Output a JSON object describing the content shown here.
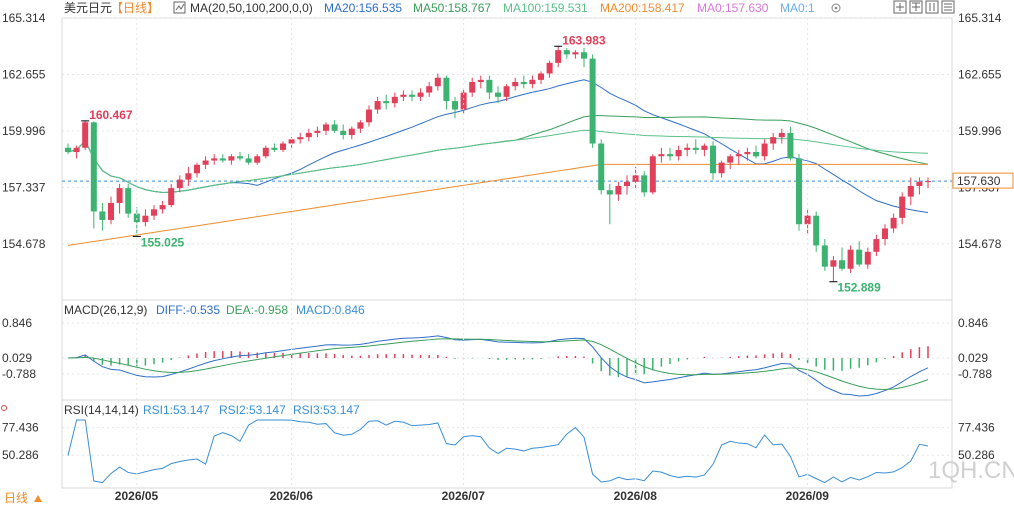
{
  "header": {
    "instrument": "美元日元",
    "period_tag": "【日线】",
    "ma_param": "MA(20,50,100,200,0,0)",
    "ma20": "MA20:156.535",
    "ma50": "MA50:158.767",
    "ma100": "MA100:159.531",
    "ma200": "MA200:158.417",
    "ma0a": "MA0:157.630",
    "ma0b": "MA0:1"
  },
  "macd_header": {
    "param": "MACD(26,12,9)",
    "diff": "DIFF:-0.535",
    "dea": "DEA:-0.958",
    "macd": "MACD:0.846"
  },
  "rsi_header": {
    "param": "RSI(14,14,14)",
    "rsi1": "RSI1:53.147",
    "rsi2": "RSI2:53.147",
    "rsi3": "RSI3:53.147"
  },
  "footer": {
    "period_label": "日线",
    "watermark": "1QH.CN"
  },
  "colors": {
    "up": "#e0405a",
    "down": "#3cb371",
    "ma20": "#2f6fc8",
    "ma50": "#3a9e5a",
    "ma100": "#5bc08a",
    "ma200": "#f08c2e",
    "diff": "#2f6fc8",
    "dea": "#3a9e5a",
    "rsi": "#3a8fd6",
    "current": "#f08c2e",
    "grid": "#e6e6e6"
  },
  "chart_data": {
    "type": "candlestick",
    "price_axis_ticks": [
      "165.314",
      "162.655",
      "159.996",
      "157.337",
      "154.678"
    ],
    "price_range": [
      152.5,
      165.314
    ],
    "current_price": "157.630",
    "annotations": {
      "high_1": "160.467",
      "low_1": "155.025",
      "high_2": "163.983",
      "low_2": "152.889"
    },
    "x_labels": [
      "2026/05",
      "2026/06",
      "2026/07",
      "2026/08",
      "2026/09"
    ],
    "candles": [
      [
        159.2,
        159.4,
        158.9,
        159.0
      ],
      [
        159.0,
        159.3,
        158.7,
        159.2
      ],
      [
        159.2,
        160.467,
        159.1,
        160.4
      ],
      [
        160.4,
        160.45,
        155.4,
        156.2
      ],
      [
        156.2,
        156.6,
        155.3,
        155.8
      ],
      [
        155.8,
        156.9,
        155.6,
        156.6
      ],
      [
        156.6,
        157.5,
        156.1,
        157.3
      ],
      [
        157.3,
        157.5,
        155.9,
        156.1
      ],
      [
        156.1,
        156.4,
        155.025,
        155.7
      ],
      [
        155.7,
        156.3,
        155.5,
        156.0
      ],
      [
        156.0,
        156.5,
        155.8,
        156.3
      ],
      [
        156.3,
        156.7,
        156.1,
        156.5
      ],
      [
        156.5,
        157.5,
        156.4,
        157.3
      ],
      [
        157.3,
        157.9,
        157.1,
        157.7
      ],
      [
        157.7,
        158.3,
        157.4,
        158.0
      ],
      [
        158.0,
        158.5,
        157.8,
        158.4
      ],
      [
        158.4,
        158.8,
        158.2,
        158.6
      ],
      [
        158.6,
        158.9,
        158.4,
        158.7
      ],
      [
        158.7,
        158.9,
        158.5,
        158.6
      ],
      [
        158.6,
        158.9,
        158.4,
        158.8
      ],
      [
        158.8,
        159.0,
        158.6,
        158.7
      ],
      [
        158.7,
        158.9,
        158.4,
        158.5
      ],
      [
        158.5,
        158.9,
        158.4,
        158.8
      ],
      [
        158.8,
        159.3,
        158.7,
        159.2
      ],
      [
        159.2,
        159.4,
        159.0,
        159.1
      ],
      [
        159.1,
        159.5,
        159.0,
        159.4
      ],
      [
        159.4,
        159.7,
        159.2,
        159.6
      ],
      [
        159.6,
        159.9,
        159.4,
        159.7
      ],
      [
        159.7,
        160.1,
        159.5,
        159.9
      ],
      [
        159.9,
        160.2,
        159.7,
        160.0
      ],
      [
        160.0,
        160.4,
        159.8,
        160.3
      ],
      [
        160.3,
        160.5,
        159.9,
        160.0
      ],
      [
        160.0,
        160.3,
        159.6,
        159.8
      ],
      [
        159.8,
        160.2,
        159.6,
        160.1
      ],
      [
        160.1,
        160.5,
        159.9,
        160.4
      ],
      [
        160.4,
        161.2,
        160.2,
        161.0
      ],
      [
        161.0,
        161.6,
        160.8,
        161.4
      ],
      [
        161.4,
        161.7,
        161.0,
        161.3
      ],
      [
        161.3,
        161.8,
        161.1,
        161.6
      ],
      [
        161.6,
        161.9,
        161.4,
        161.7
      ],
      [
        161.7,
        161.9,
        161.4,
        161.6
      ],
      [
        161.6,
        162.0,
        161.4,
        161.8
      ],
      [
        161.8,
        162.3,
        161.6,
        162.1
      ],
      [
        162.1,
        162.7,
        161.9,
        162.5
      ],
      [
        162.5,
        162.6,
        161.0,
        161.4
      ],
      [
        161.4,
        161.6,
        160.6,
        161.0
      ],
      [
        161.0,
        162.0,
        160.8,
        161.8
      ],
      [
        161.8,
        162.5,
        161.6,
        162.3
      ],
      [
        162.3,
        162.6,
        162.0,
        162.4
      ],
      [
        162.4,
        162.6,
        161.5,
        161.8
      ],
      [
        161.8,
        162.1,
        161.3,
        161.6
      ],
      [
        161.6,
        162.2,
        161.4,
        162.1
      ],
      [
        162.1,
        162.5,
        161.9,
        162.3
      ],
      [
        162.3,
        162.6,
        162.0,
        162.2
      ],
      [
        162.2,
        162.6,
        162.0,
        162.4
      ],
      [
        162.4,
        162.8,
        162.2,
        162.7
      ],
      [
        162.7,
        163.3,
        162.5,
        163.2
      ],
      [
        163.2,
        163.983,
        163.0,
        163.8
      ],
      [
        163.8,
        163.9,
        163.4,
        163.6
      ],
      [
        163.6,
        163.8,
        163.4,
        163.7
      ],
      [
        163.7,
        163.9,
        163.0,
        163.4
      ],
      [
        163.4,
        163.6,
        159.2,
        159.4
      ],
      [
        159.4,
        159.6,
        157.0,
        157.2
      ],
      [
        157.2,
        157.5,
        155.6,
        157.0
      ],
      [
        157.0,
        157.6,
        156.7,
        157.4
      ],
      [
        157.4,
        157.9,
        157.0,
        157.6
      ],
      [
        157.6,
        158.3,
        157.3,
        157.9
      ],
      [
        157.9,
        158.1,
        156.9,
        157.1
      ],
      [
        157.1,
        158.9,
        157.0,
        158.8
      ],
      [
        158.8,
        159.2,
        158.5,
        158.9
      ],
      [
        158.9,
        159.2,
        158.6,
        158.8
      ],
      [
        158.8,
        159.3,
        158.6,
        159.1
      ],
      [
        159.1,
        159.4,
        158.8,
        159.2
      ],
      [
        159.2,
        159.6,
        158.9,
        159.1
      ],
      [
        159.1,
        159.4,
        158.8,
        159.3
      ],
      [
        159.3,
        159.5,
        157.7,
        158.0
      ],
      [
        158.0,
        158.6,
        157.8,
        158.5
      ],
      [
        158.5,
        158.9,
        158.2,
        158.8
      ],
      [
        158.8,
        159.1,
        158.4,
        158.9
      ],
      [
        158.9,
        159.2,
        158.6,
        159.0
      ],
      [
        159.0,
        159.3,
        158.7,
        158.8
      ],
      [
        158.8,
        159.6,
        158.6,
        159.4
      ],
      [
        159.4,
        159.9,
        159.1,
        159.7
      ],
      [
        159.7,
        160.1,
        159.4,
        159.9
      ],
      [
        159.9,
        160.2,
        158.6,
        158.7
      ],
      [
        158.7,
        158.9,
        155.3,
        155.6
      ],
      [
        155.6,
        156.3,
        155.1,
        156.0
      ],
      [
        156.0,
        156.2,
        154.3,
        154.6
      ],
      [
        154.6,
        154.9,
        153.4,
        153.6
      ],
      [
        153.6,
        154.1,
        152.889,
        153.9
      ],
      [
        153.9,
        154.5,
        153.4,
        153.5
      ],
      [
        153.5,
        154.6,
        153.3,
        154.4
      ],
      [
        154.4,
        154.8,
        153.6,
        153.7
      ],
      [
        153.7,
        154.5,
        153.5,
        154.3
      ],
      [
        154.3,
        155.1,
        154.1,
        154.9
      ],
      [
        154.9,
        155.6,
        154.6,
        155.4
      ],
      [
        155.4,
        156.1,
        155.2,
        155.9
      ],
      [
        155.9,
        157.1,
        155.6,
        156.9
      ],
      [
        156.9,
        157.8,
        156.5,
        157.4
      ],
      [
        157.4,
        157.8,
        157.0,
        157.6
      ],
      [
        157.6,
        157.8,
        157.3,
        157.63
      ]
    ]
  }
}
